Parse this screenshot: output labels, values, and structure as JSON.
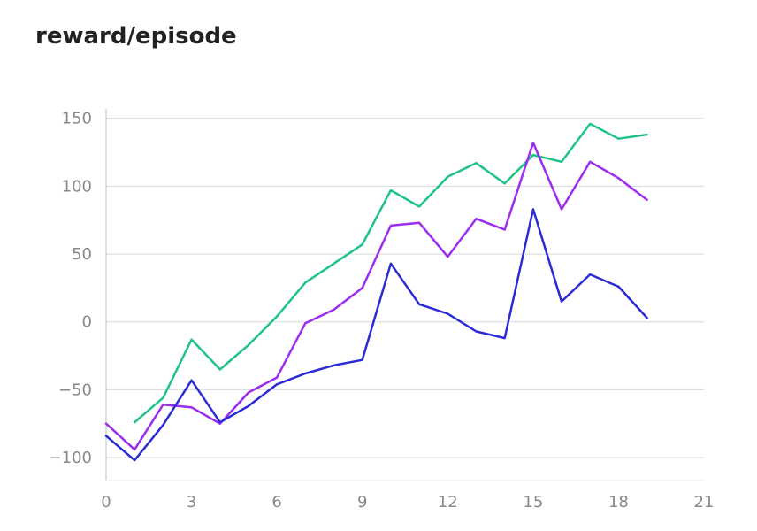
{
  "chart_data": {
    "type": "line",
    "title": "reward/episode",
    "xlabel": "",
    "ylabel": "",
    "xlim": [
      0,
      21
    ],
    "ylim": [
      -113,
      157
    ],
    "xticks": [
      0,
      3,
      6,
      9,
      12,
      15,
      18,
      21
    ],
    "yticks": [
      -100,
      -50,
      0,
      50,
      100,
      150
    ],
    "ytick_labels": [
      "−100",
      "−50",
      "0",
      "50",
      "100",
      "150"
    ],
    "grid": "horizontal",
    "legend": "none",
    "series": [
      {
        "color": "#1fc38a",
        "x": [
          1,
          2,
          3,
          4,
          5,
          6,
          7,
          8,
          9,
          10,
          11,
          12,
          13,
          14,
          15,
          16,
          17,
          18,
          19
        ],
        "values": [
          -74,
          -56,
          -13,
          -35,
          -17,
          4,
          29,
          43,
          57,
          97,
          85,
          107,
          117,
          102,
          123,
          118,
          146,
          135,
          138
        ]
      },
      {
        "color": "#9b2cf0",
        "x": [
          0,
          1,
          2,
          3,
          4,
          5,
          6,
          7,
          8,
          9,
          10,
          11,
          12,
          13,
          14,
          15,
          16,
          17,
          18,
          19
        ],
        "values": [
          -75,
          -94,
          -61,
          -63,
          -75,
          -52,
          -41,
          -1,
          9,
          25,
          71,
          73,
          48,
          76,
          68,
          132,
          83,
          118,
          106,
          90
        ]
      },
      {
        "color": "#2b2bd6",
        "x": [
          0,
          1,
          2,
          3,
          4,
          5,
          6,
          7,
          8,
          9,
          10,
          11,
          12,
          13,
          14,
          15,
          16,
          17,
          18,
          19
        ],
        "values": [
          -84,
          -102,
          -76,
          -43,
          -74,
          -62,
          -46,
          -38,
          -32,
          -28,
          43,
          13,
          6,
          -7,
          -12,
          83,
          15,
          35,
          26,
          3
        ]
      }
    ]
  }
}
